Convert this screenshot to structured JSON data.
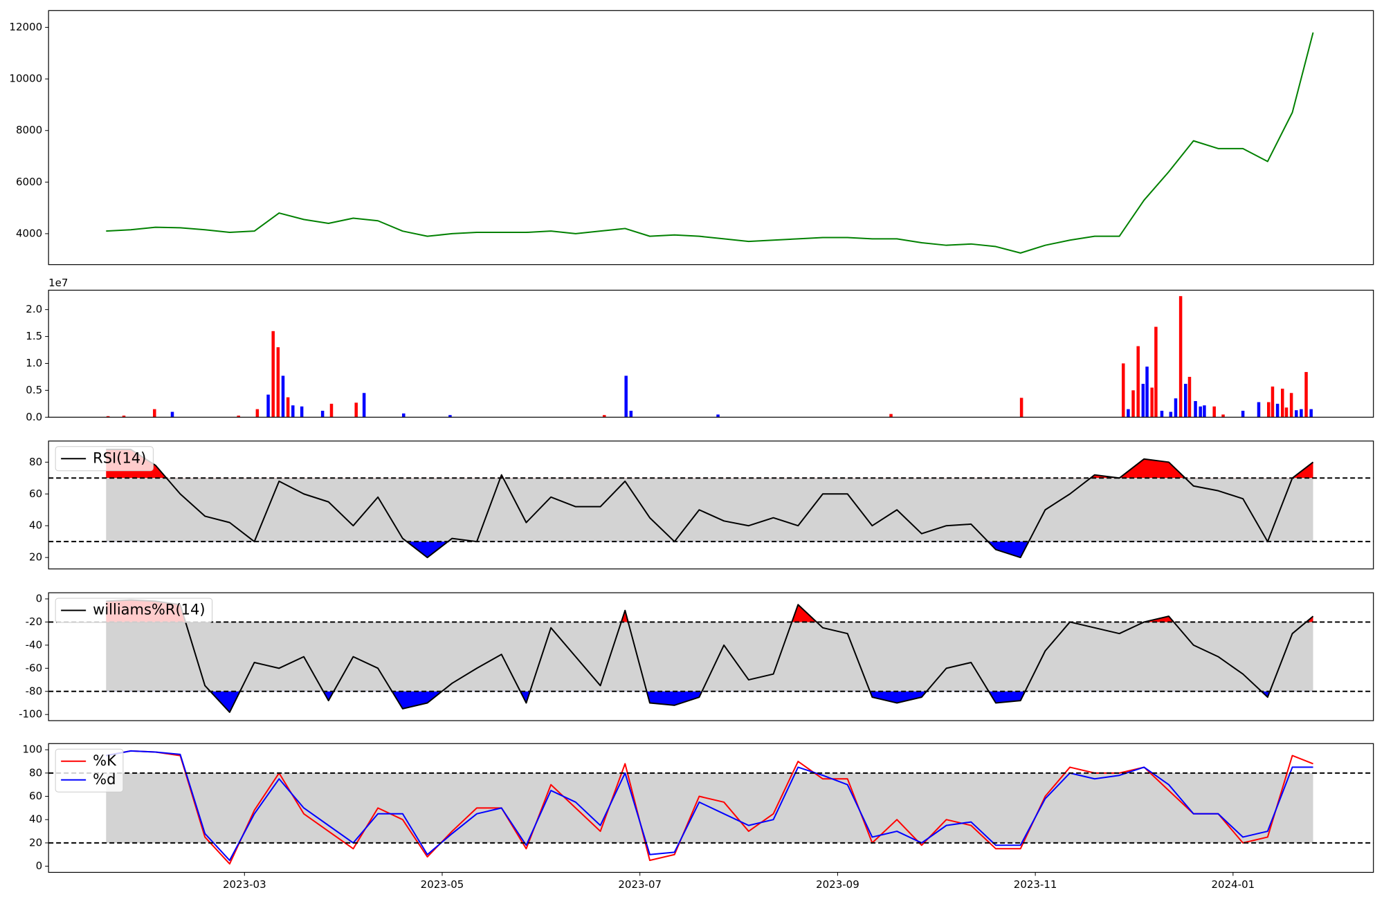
{
  "chart_data": [
    {
      "type": "line",
      "x": [
        0.6,
        0.85,
        1.1,
        1.35,
        1.6,
        1.85,
        2.1,
        2.35,
        2.6,
        2.85,
        3.1,
        3.35,
        3.6,
        3.85,
        4.1,
        4.35,
        4.6,
        4.85,
        5.1,
        5.35,
        5.6,
        5.85,
        6.1,
        6.35,
        6.6,
        6.85,
        7.1,
        7.35,
        7.6,
        7.85,
        8.1,
        8.35,
        8.6,
        8.85,
        9.1,
        9.35,
        9.6,
        9.85,
        10.1,
        10.35,
        10.6,
        10.85,
        11.1,
        11.35,
        11.6,
        11.85,
        12.1,
        12.35,
        12.6,
        12.81
      ],
      "series": [
        {
          "color": "#008000",
          "values": [
            4100,
            4150,
            4250,
            4230,
            4150,
            4050,
            4100,
            4800,
            4550,
            4400,
            4600,
            4500,
            4100,
            3900,
            4000,
            4050,
            4050,
            4050,
            4100,
            4000,
            4100,
            4200,
            3900,
            3950,
            3900,
            3800,
            3700,
            3750,
            3800,
            3850,
            3850,
            3800,
            3800,
            3650,
            3550,
            3600,
            3500,
            3250,
            3550,
            3750,
            3900,
            3900,
            5300,
            6400,
            7600,
            7300,
            7300,
            6800,
            8700,
            11800
          ]
        }
      ],
      "xlim": [
        0.018,
        13.42
      ],
      "ylim": [
        2800,
        12650
      ],
      "yticks": [
        4000,
        6000,
        8000,
        10000,
        12000
      ]
    },
    {
      "type": "bar",
      "x": [
        0.62,
        0.78,
        1.09,
        1.27,
        1.94,
        2.13,
        2.24,
        2.29,
        2.34,
        2.39,
        2.44,
        2.49,
        2.58,
        2.79,
        2.88,
        3.13,
        3.21,
        3.61,
        4.08,
        5.64,
        5.86,
        5.91,
        6.79,
        8.54,
        9.86,
        10.89,
        10.94,
        10.99,
        11.04,
        11.09,
        11.13,
        11.18,
        11.22,
        11.28,
        11.37,
        11.42,
        11.47,
        11.52,
        11.56,
        11.62,
        11.67,
        11.71,
        11.81,
        11.9,
        12.1,
        12.26,
        12.36,
        12.4,
        12.45,
        12.5,
        12.54,
        12.59,
        12.64,
        12.69,
        12.74,
        12.79
      ],
      "values": [
        0.02,
        0.03,
        0.15,
        0.1,
        0.03,
        0.15,
        0.42,
        1.6,
        1.3,
        0.77,
        0.37,
        0.22,
        0.2,
        0.12,
        0.25,
        0.27,
        0.45,
        0.07,
        0.04,
        0.04,
        0.77,
        0.12,
        0.05,
        0.06,
        0.36,
        1.0,
        0.15,
        0.5,
        1.32,
        0.62,
        0.94,
        0.55,
        1.68,
        0.12,
        0.1,
        0.35,
        2.25,
        0.62,
        0.75,
        0.3,
        0.2,
        0.22,
        0.2,
        0.05,
        0.12,
        0.28,
        0.28,
        0.57,
        0.25,
        0.53,
        0.18,
        0.45,
        0.13,
        0.15,
        0.84,
        0.15
      ],
      "colors": [
        "#ff0000",
        "#ff0000",
        "#ff0000",
        "#0000ff",
        "#ff0000",
        "#ff0000",
        "#0000ff",
        "#ff0000",
        "#ff0000",
        "#0000ff",
        "#ff0000",
        "#0000ff",
        "#0000ff",
        "#0000ff",
        "#ff0000",
        "#ff0000",
        "#0000ff",
        "#0000ff",
        "#0000ff",
        "#ff0000",
        "#0000ff",
        "#0000ff",
        "#0000ff",
        "#ff0000",
        "#ff0000",
        "#ff0000",
        "#0000ff",
        "#ff0000",
        "#ff0000",
        "#0000ff",
        "#0000ff",
        "#ff0000",
        "#ff0000",
        "#0000ff",
        "#0000ff",
        "#0000ff",
        "#ff0000",
        "#0000ff",
        "#ff0000",
        "#0000ff",
        "#0000ff",
        "#0000ff",
        "#ff0000",
        "#ff0000",
        "#0000ff",
        "#0000ff",
        "#ff0000",
        "#ff0000",
        "#0000ff",
        "#ff0000",
        "#ff0000",
        "#ff0000",
        "#0000ff",
        "#0000ff",
        "#ff0000",
        "#0000ff"
      ],
      "offset_label": "1e7",
      "xlim": [
        0.018,
        13.42
      ],
      "ylim": [
        0,
        2.36
      ],
      "yticks": [
        {
          "value": 0,
          "label": "0.0"
        },
        0.5,
        {
          "value": 1,
          "label": "1.0"
        },
        1.5,
        {
          "value": 2,
          "label": "2.0"
        }
      ]
    },
    {
      "type": "line",
      "x": [
        0.6,
        0.85,
        1.1,
        1.35,
        1.6,
        1.85,
        2.1,
        2.35,
        2.6,
        2.85,
        3.1,
        3.35,
        3.6,
        3.85,
        4.1,
        4.35,
        4.6,
        4.85,
        5.1,
        5.35,
        5.6,
        5.85,
        6.1,
        6.35,
        6.6,
        6.85,
        7.1,
        7.35,
        7.6,
        7.85,
        8.1,
        8.35,
        8.6,
        8.85,
        9.1,
        9.35,
        9.6,
        9.85,
        10.1,
        10.35,
        10.6,
        10.85,
        11.1,
        11.35,
        11.6,
        11.85,
        12.1,
        12.35,
        12.6,
        12.81
      ],
      "series": [
        {
          "name": "RSI(14)",
          "color": "#000000",
          "values": [
            88,
            88,
            78,
            60,
            46,
            42,
            30,
            68,
            60,
            55,
            40,
            58,
            32,
            20,
            32,
            30,
            72,
            42,
            58,
            52,
            52,
            68,
            45,
            30,
            50,
            43,
            40,
            45,
            40,
            60,
            60,
            40,
            50,
            35,
            40,
            41,
            25,
            20,
            50,
            60,
            72,
            70,
            82,
            80,
            65,
            62,
            57,
            30,
            70,
            80
          ]
        }
      ],
      "thresholds": [
        70,
        30
      ],
      "band_color": "#d3d3d3",
      "above_color": "#ff0000",
      "below_color": "#0000ff",
      "legend": "upper left",
      "xlim": [
        0.018,
        13.42
      ],
      "ylim": [
        12.8,
        93.3
      ],
      "yticks": [
        20,
        40,
        60,
        80
      ]
    },
    {
      "type": "line",
      "x": [
        0.6,
        0.85,
        1.1,
        1.35,
        1.6,
        1.85,
        2.1,
        2.35,
        2.6,
        2.85,
        3.1,
        3.35,
        3.6,
        3.85,
        4.1,
        4.35,
        4.6,
        4.85,
        5.1,
        5.35,
        5.6,
        5.85,
        6.1,
        6.35,
        6.6,
        6.85,
        7.1,
        7.35,
        7.6,
        7.85,
        8.1,
        8.35,
        8.6,
        8.85,
        9.1,
        9.35,
        9.6,
        9.85,
        10.1,
        10.35,
        10.6,
        10.85,
        11.1,
        11.35,
        11.6,
        11.85,
        12.1,
        12.35,
        12.6,
        12.81
      ],
      "series": [
        {
          "name": "williams%R(14)",
          "color": "#000000",
          "values": [
            -2,
            -1,
            -2,
            -5,
            -75,
            -98,
            -55,
            -60,
            -50,
            -88,
            -50,
            -60,
            -95,
            -90,
            -73,
            -60,
            -48,
            -90,
            -25,
            -50,
            -75,
            -10,
            -90,
            -92,
            -85,
            -40,
            -70,
            -65,
            -5,
            -25,
            -30,
            -85,
            -90,
            -85,
            -60,
            -55,
            -90,
            -88,
            -45,
            -20,
            -25,
            -30,
            -20,
            -15,
            -40,
            -50,
            -65,
            -85,
            -30,
            -15
          ]
        }
      ],
      "thresholds": [
        -20,
        -80
      ],
      "band_color": "#d3d3d3",
      "above_color": "#ff0000",
      "below_color": "#0000ff",
      "legend": "upper left",
      "xlim": [
        0.018,
        13.42
      ],
      "ylim": [
        -105.3,
        5.3
      ],
      "yticks": [
        -100,
        -80,
        -60,
        -40,
        -20,
        0
      ]
    },
    {
      "type": "line",
      "x": [
        0.6,
        0.85,
        1.1,
        1.35,
        1.6,
        1.85,
        2.1,
        2.35,
        2.6,
        2.85,
        3.1,
        3.35,
        3.6,
        3.85,
        4.1,
        4.35,
        4.6,
        4.85,
        5.1,
        5.35,
        5.6,
        5.85,
        6.1,
        6.35,
        6.6,
        6.85,
        7.1,
        7.35,
        7.6,
        7.85,
        8.1,
        8.35,
        8.6,
        8.85,
        9.1,
        9.35,
        9.6,
        9.85,
        10.1,
        10.35,
        10.6,
        10.85,
        11.1,
        11.35,
        11.6,
        11.85,
        12.1,
        12.35,
        12.6,
        12.81
      ],
      "series": [
        {
          "name": "%K",
          "color": "#ff0000",
          "values": [
            95,
            99,
            98,
            95,
            25,
            2,
            48,
            80,
            45,
            30,
            15,
            50,
            40,
            8,
            30,
            50,
            50,
            15,
            70,
            50,
            30,
            88,
            5,
            10,
            60,
            55,
            30,
            45,
            90,
            75,
            75,
            20,
            40,
            18,
            40,
            35,
            15,
            15,
            60,
            85,
            80,
            80,
            85,
            65,
            45,
            45,
            20,
            25,
            95,
            88
          ]
        },
        {
          "name": "%d",
          "color": "#0000ff",
          "values": [
            95,
            99,
            98,
            96,
            28,
            5,
            45,
            75,
            50,
            35,
            20,
            45,
            45,
            10,
            28,
            45,
            50,
            18,
            65,
            55,
            35,
            80,
            10,
            12,
            55,
            45,
            35,
            40,
            85,
            78,
            70,
            25,
            30,
            20,
            35,
            38,
            18,
            18,
            58,
            80,
            75,
            78,
            85,
            70,
            45,
            45,
            25,
            30,
            85,
            85
          ]
        }
      ],
      "thresholds": [
        80,
        20
      ],
      "band_color": "#d3d3d3",
      "legend": "upper left",
      "xlim": [
        0.018,
        13.42
      ],
      "ylim": [
        -5.3,
        105.3
      ],
      "yticks": [
        0,
        20,
        40,
        60,
        80,
        100
      ],
      "xticks": [
        {
          "value": 2,
          "label": "2023-03"
        },
        {
          "value": 4,
          "label": "2023-05"
        },
        {
          "value": 6,
          "label": "2023-07"
        },
        {
          "value": 8,
          "label": "2023-09"
        },
        {
          "value": 10,
          "label": "2023-11"
        },
        {
          "value": 12,
          "label": "2024-01"
        }
      ]
    }
  ]
}
